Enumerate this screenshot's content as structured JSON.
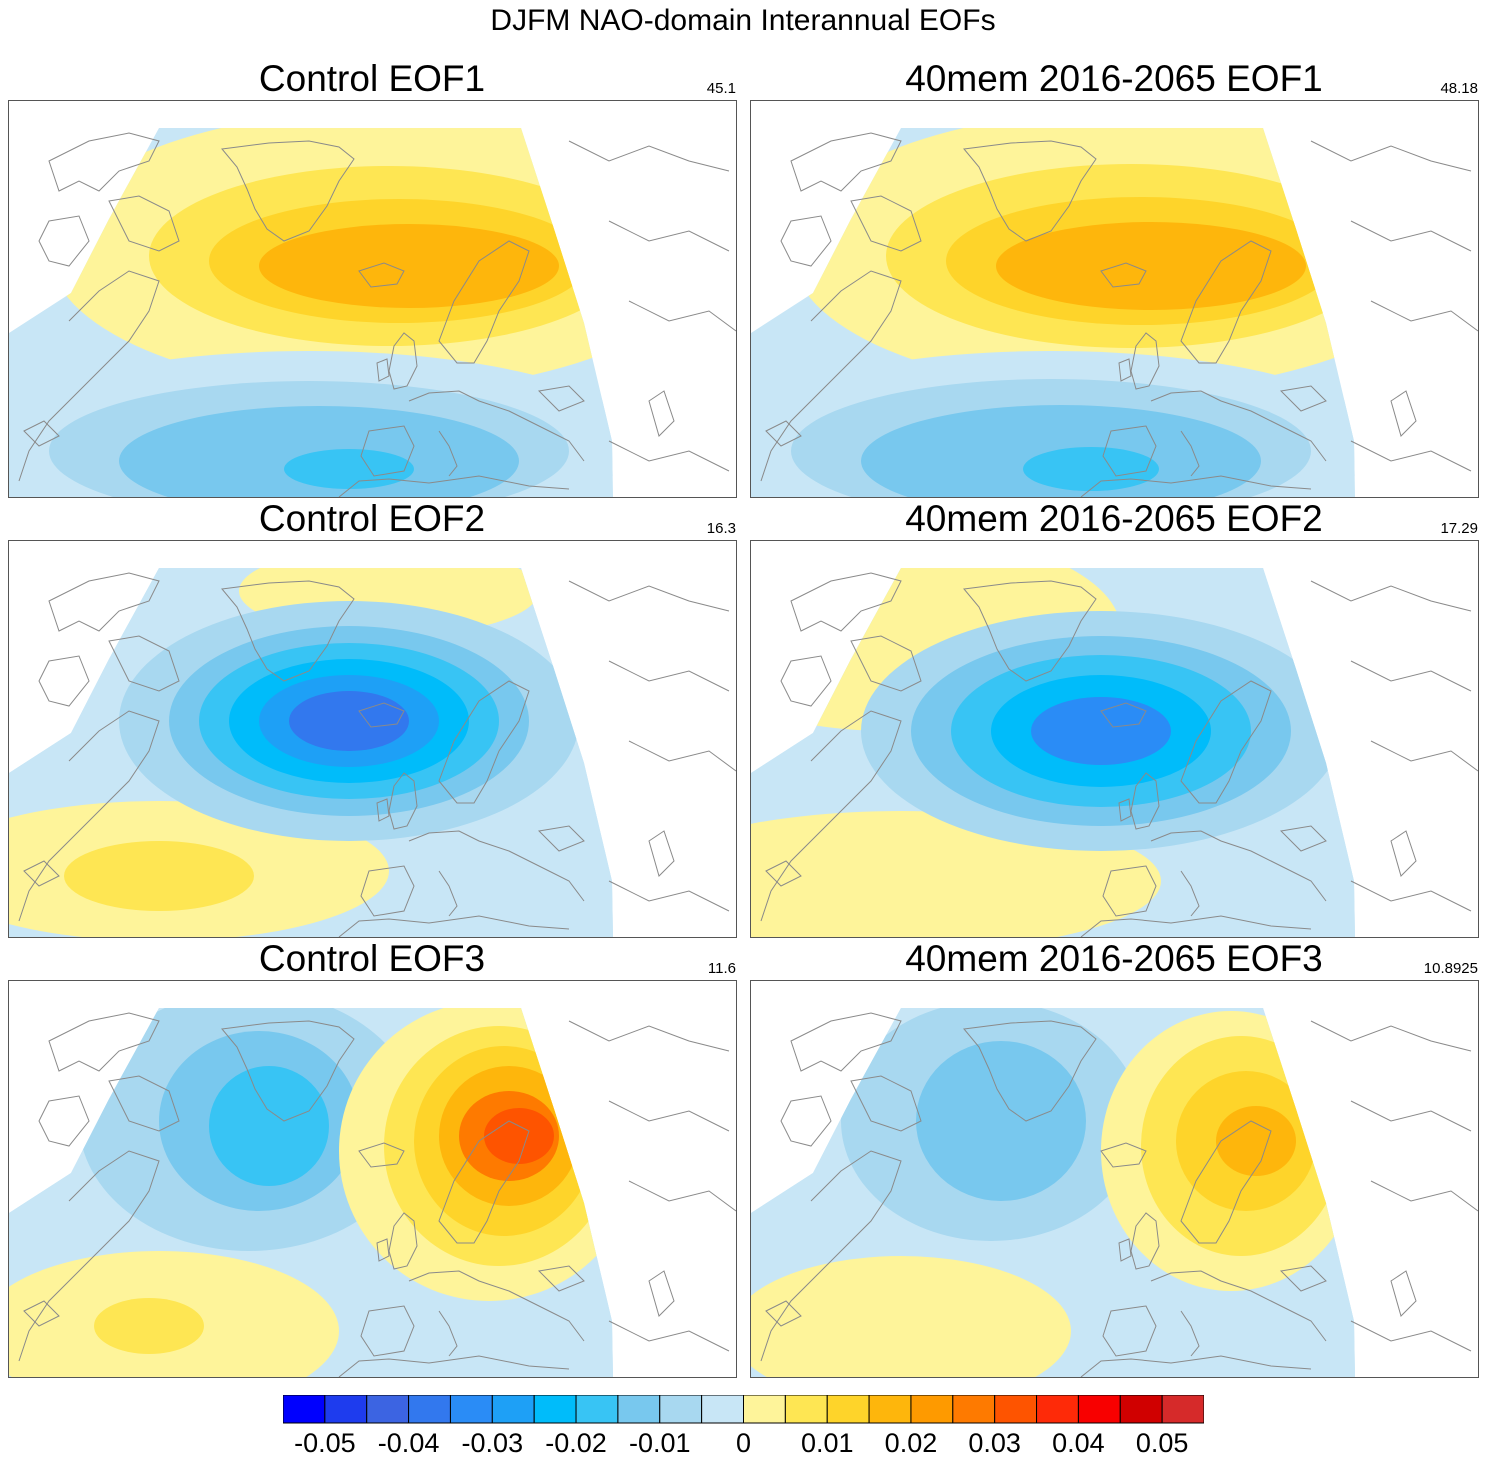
{
  "title": "DJFM NAO-domain Interannual EOFs",
  "panels": [
    {
      "title": "Control EOF1",
      "value": "45.1",
      "mode": 1,
      "variant": "control"
    },
    {
      "title": "40mem 2016-2065 EOF1",
      "value": "48.18",
      "mode": 1,
      "variant": "future"
    },
    {
      "title": "Control EOF2",
      "value": "16.3",
      "mode": 2,
      "variant": "control"
    },
    {
      "title": "40mem 2016-2065 EOF2",
      "value": "17.29",
      "mode": 2,
      "variant": "future"
    },
    {
      "title": "Control EOF3",
      "value": "11.6",
      "mode": 3,
      "variant": "control"
    },
    {
      "title": "40mem 2016-2065 EOF3",
      "value": "10.8925",
      "mode": 3,
      "variant": "future"
    }
  ],
  "colorbar": {
    "colors": [
      "#0000fe",
      "#1e3cee",
      "#3c64e2",
      "#3278ee",
      "#2a8cf6",
      "#1ea0f6",
      "#00bcfa",
      "#38c4f4",
      "#78c8ee",
      "#a8d8f0",
      "#c8e6f6",
      "#fef49a",
      "#fee653",
      "#fed42a",
      "#feb60c",
      "#fe9a00",
      "#fe7a00",
      "#fe5400",
      "#fe2a08",
      "#f80000",
      "#d00000",
      "#d62a2a"
    ],
    "labels": [
      "-0.05",
      "-0.04",
      "-0.03",
      "-0.02",
      "-0.01",
      "0",
      "0.01",
      "0.02",
      "0.03",
      "0.04",
      "0.05"
    ]
  }
}
